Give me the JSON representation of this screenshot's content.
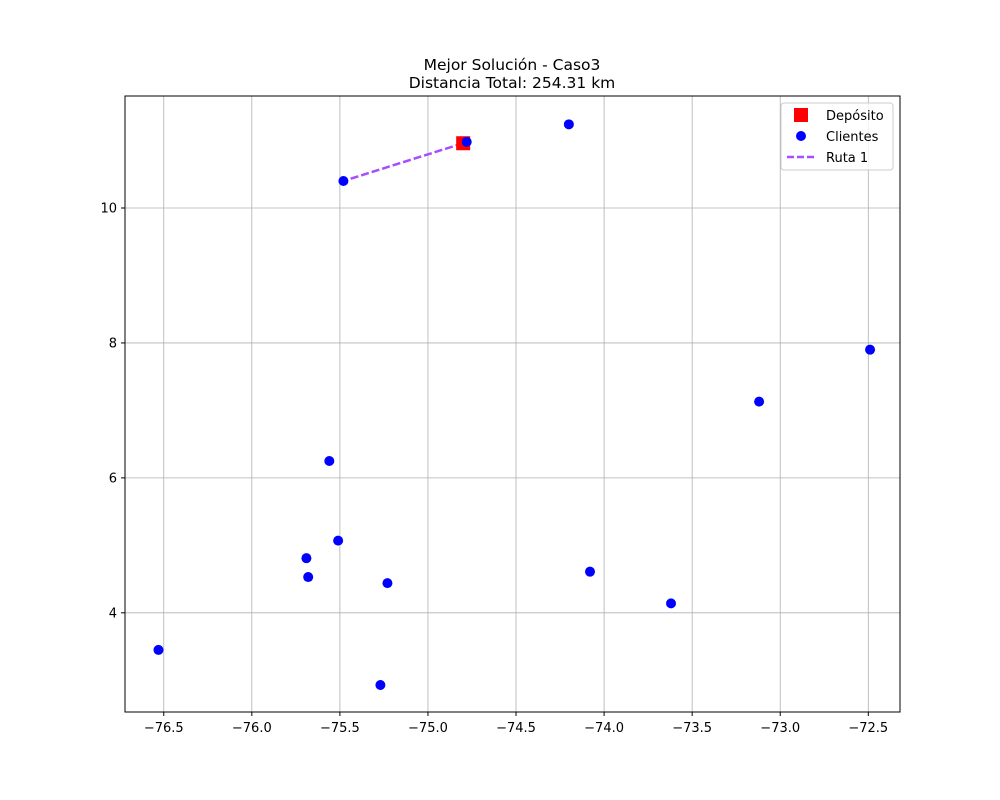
{
  "chart_data": {
    "type": "scatter",
    "title": "Mejor Solución - Caso3",
    "subtitle": "Distancia Total: 254.31 km",
    "xlabel": "",
    "ylabel": "",
    "xlim": [
      -76.72,
      -72.32
    ],
    "ylim": [
      2.53,
      11.66
    ],
    "xticks": [
      -76.5,
      -76.0,
      -75.5,
      -75.0,
      -74.5,
      -74.0,
      -73.5,
      -73.0,
      -72.5
    ],
    "xtick_labels": [
      "−76.5",
      "−76.0",
      "−75.5",
      "−75.0",
      "−74.5",
      "−74.0",
      "−73.5",
      "−73.0",
      "−72.5"
    ],
    "yticks": [
      4,
      6,
      8,
      10
    ],
    "ytick_labels": [
      "4",
      "6",
      "8",
      "10"
    ],
    "grid": true,
    "legend_position": "top-right",
    "depot": {
      "name": "Depósito",
      "color": "#ff0000",
      "marker": "square",
      "point": {
        "x": -74.8,
        "y": 10.96
      }
    },
    "clients": {
      "name": "Clientes",
      "color": "#0000ff",
      "marker": "circle",
      "points": [
        {
          "x": -74.78,
          "y": 10.98
        },
        {
          "x": -75.48,
          "y": 10.4
        },
        {
          "x": -74.2,
          "y": 11.24
        },
        {
          "x": -72.49,
          "y": 7.9
        },
        {
          "x": -73.12,
          "y": 7.13
        },
        {
          "x": -75.56,
          "y": 6.25
        },
        {
          "x": -75.51,
          "y": 5.07
        },
        {
          "x": -75.69,
          "y": 4.81
        },
        {
          "x": -75.68,
          "y": 4.53
        },
        {
          "x": -75.23,
          "y": 4.44
        },
        {
          "x": -74.08,
          "y": 4.61
        },
        {
          "x": -73.62,
          "y": 4.14
        },
        {
          "x": -76.53,
          "y": 3.45
        },
        {
          "x": -75.27,
          "y": 2.93
        }
      ]
    },
    "routes": [
      {
        "name": "Ruta 1",
        "color": "#a64dff",
        "style": "dashed",
        "points": [
          {
            "x": -74.8,
            "y": 10.96
          },
          {
            "x": -75.48,
            "y": 10.4
          }
        ]
      }
    ]
  }
}
